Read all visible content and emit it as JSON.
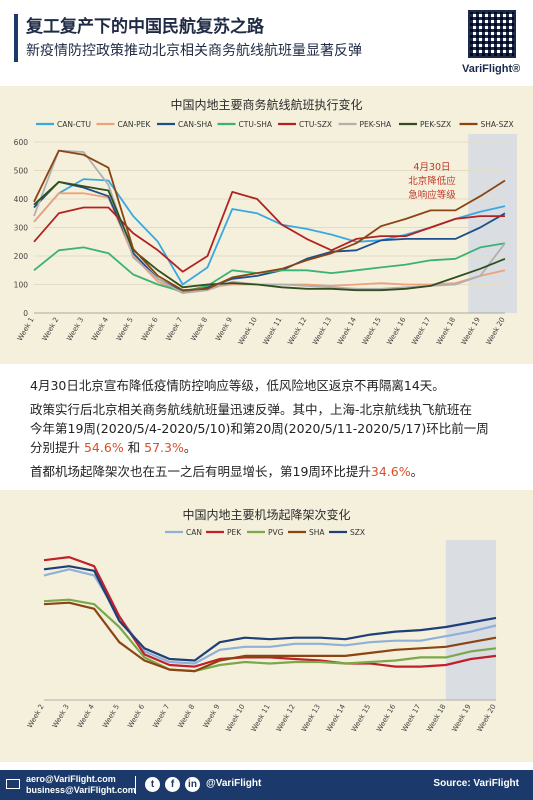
{
  "header": {
    "title": "复工复产下的中国民航复苏之路",
    "subtitle": "新疫情防控政策推动北京相关商务航线航班量显著反弹",
    "logo": "VariFlight®"
  },
  "text": {
    "p1": "4月30日北京宣布降低疫情防控响应等级，低风险地区返京不再隔离14天。",
    "p2a": "政策实行后北京相关商务航线航班量迅速反弹。其中，上海-北京航线执飞航班在",
    "p2b": "今年第19周(2020/5/4-2020/5/10)和第20周(2020/5/11-2020/5/17)环比前一周",
    "p2c_pre": "分别提升 ",
    "p2c_v1": "54.6%",
    "p2c_mid": " 和 ",
    "p2c_v2": "57.3%",
    "p2c_post": "。",
    "p3_pre": "首都机场起降架次也在五一之后有明显增长，第19周环比提升",
    "p3_v": "34.6%",
    "p3_post": "。"
  },
  "footer": {
    "email1": "aero@VariFlight.com",
    "email2": "business@VariFlight.com",
    "handle": "@VariFlight",
    "source": "Source: VariFlight"
  },
  "chart_data": [
    {
      "type": "line",
      "title": "中国内地主要商务航线航班执行变化",
      "categories": [
        "Week 1",
        "Week 2",
        "Week 3",
        "Week 4",
        "Week 5",
        "Week 6",
        "Week 7",
        "Week 8",
        "Week 9",
        "Week 10",
        "Week 11",
        "Week 12",
        "Week 13",
        "Week 14",
        "Week 15",
        "Week 16",
        "Week 17",
        "Week 18",
        "Week 19",
        "Week 20"
      ],
      "ylim": [
        0,
        600
      ],
      "yticks": [
        0,
        100,
        200,
        300,
        400,
        500,
        600
      ],
      "annotation": {
        "lines": [
          "4月30日",
          "北京降低应",
          "急响应等级"
        ],
        "color": "#c0392b"
      },
      "highlight_range": [
        "Week 19",
        "Week 20"
      ],
      "legend_position": "top",
      "series": [
        {
          "name": "CAN-CTU",
          "color": "#3aa8e0",
          "values": [
            320,
            420,
            470,
            465,
            340,
            250,
            100,
            160,
            365,
            350,
            310,
            295,
            275,
            250,
            255,
            275,
            300,
            330,
            355,
            375
          ]
        },
        {
          "name": "CAN-PEK",
          "color": "#f0a07a",
          "values": [
            320,
            420,
            420,
            405,
            200,
            110,
            70,
            90,
            100,
            100,
            100,
            100,
            95,
            100,
            105,
            100,
            100,
            105,
            130,
            150
          ]
        },
        {
          "name": "CAN-SHA",
          "color": "#1f4e8c",
          "values": [
            370,
            460,
            440,
            410,
            210,
            120,
            75,
            90,
            120,
            130,
            150,
            190,
            215,
            220,
            255,
            260,
            260,
            260,
            300,
            350
          ]
        },
        {
          "name": "CTU-SHA",
          "color": "#3bb273",
          "values": [
            150,
            220,
            230,
            210,
            135,
            100,
            75,
            95,
            150,
            140,
            150,
            150,
            140,
            150,
            160,
            170,
            185,
            190,
            230,
            245
          ]
        },
        {
          "name": "CTU-SZX",
          "color": "#b22222",
          "values": [
            250,
            350,
            370,
            370,
            280,
            220,
            145,
            200,
            425,
            400,
            310,
            260,
            220,
            260,
            270,
            270,
            300,
            330,
            340,
            340
          ]
        },
        {
          "name": "PEK-SHA",
          "color": "#b0b0b0",
          "values": [
            340,
            570,
            565,
            450,
            195,
            120,
            70,
            80,
            110,
            100,
            100,
            95,
            90,
            85,
            85,
            90,
            95,
            100,
            130,
            245
          ]
        },
        {
          "name": "PEK-SZX",
          "color": "#2f4f1f",
          "values": [
            380,
            460,
            445,
            430,
            220,
            150,
            90,
            100,
            105,
            100,
            90,
            85,
            85,
            80,
            80,
            85,
            95,
            125,
            155,
            190
          ]
        },
        {
          "name": "SHA-SZX",
          "color": "#8b4513",
          "values": [
            390,
            570,
            555,
            510,
            225,
            130,
            80,
            85,
            125,
            140,
            155,
            185,
            210,
            245,
            305,
            330,
            360,
            360,
            410,
            465
          ]
        }
      ]
    },
    {
      "type": "line",
      "title": "中国内地主要机场起降架次变化",
      "categories": [
        "Week 2",
        "Week 3",
        "Week 4",
        "Week 5",
        "Week 6",
        "Week 7",
        "Week 8",
        "Week 9",
        "Week 10",
        "Week 11",
        "Week 12",
        "Week 13",
        "Week 14",
        "Week 15",
        "Week 16",
        "Week 17",
        "Week 18",
        "Week 19",
        "Week 20"
      ],
      "ylim": [
        0,
        1
      ],
      "highlight_range": [
        "Week 18",
        "Week 20"
      ],
      "legend_position": "top",
      "y_relative_units": true,
      "series": [
        {
          "name": "CAN",
          "color": "#8fb0d8",
          "values": [
            0.82,
            0.86,
            0.82,
            0.55,
            0.32,
            0.25,
            0.24,
            0.33,
            0.35,
            0.35,
            0.37,
            0.37,
            0.36,
            0.38,
            0.39,
            0.39,
            0.42,
            0.45,
            0.49
          ]
        },
        {
          "name": "PEK",
          "color": "#c0202a",
          "values": [
            0.92,
            0.94,
            0.88,
            0.55,
            0.3,
            0.23,
            0.22,
            0.27,
            0.28,
            0.28,
            0.27,
            0.26,
            0.24,
            0.24,
            0.22,
            0.22,
            0.23,
            0.27,
            0.29
          ]
        },
        {
          "name": "PVG",
          "color": "#7aa84a",
          "values": [
            0.65,
            0.66,
            0.63,
            0.48,
            0.28,
            0.2,
            0.19,
            0.23,
            0.25,
            0.24,
            0.25,
            0.25,
            0.24,
            0.25,
            0.26,
            0.28,
            0.28,
            0.32,
            0.34
          ]
        },
        {
          "name": "SHA",
          "color": "#8b4513",
          "values": [
            0.63,
            0.64,
            0.6,
            0.38,
            0.26,
            0.2,
            0.19,
            0.26,
            0.29,
            0.29,
            0.29,
            0.29,
            0.29,
            0.31,
            0.33,
            0.34,
            0.35,
            0.38,
            0.41
          ]
        },
        {
          "name": "SZX",
          "color": "#1f3f78",
          "values": [
            0.86,
            0.88,
            0.85,
            0.52,
            0.34,
            0.27,
            0.26,
            0.38,
            0.41,
            0.4,
            0.41,
            0.41,
            0.4,
            0.43,
            0.45,
            0.46,
            0.48,
            0.51,
            0.54
          ]
        }
      ]
    }
  ]
}
